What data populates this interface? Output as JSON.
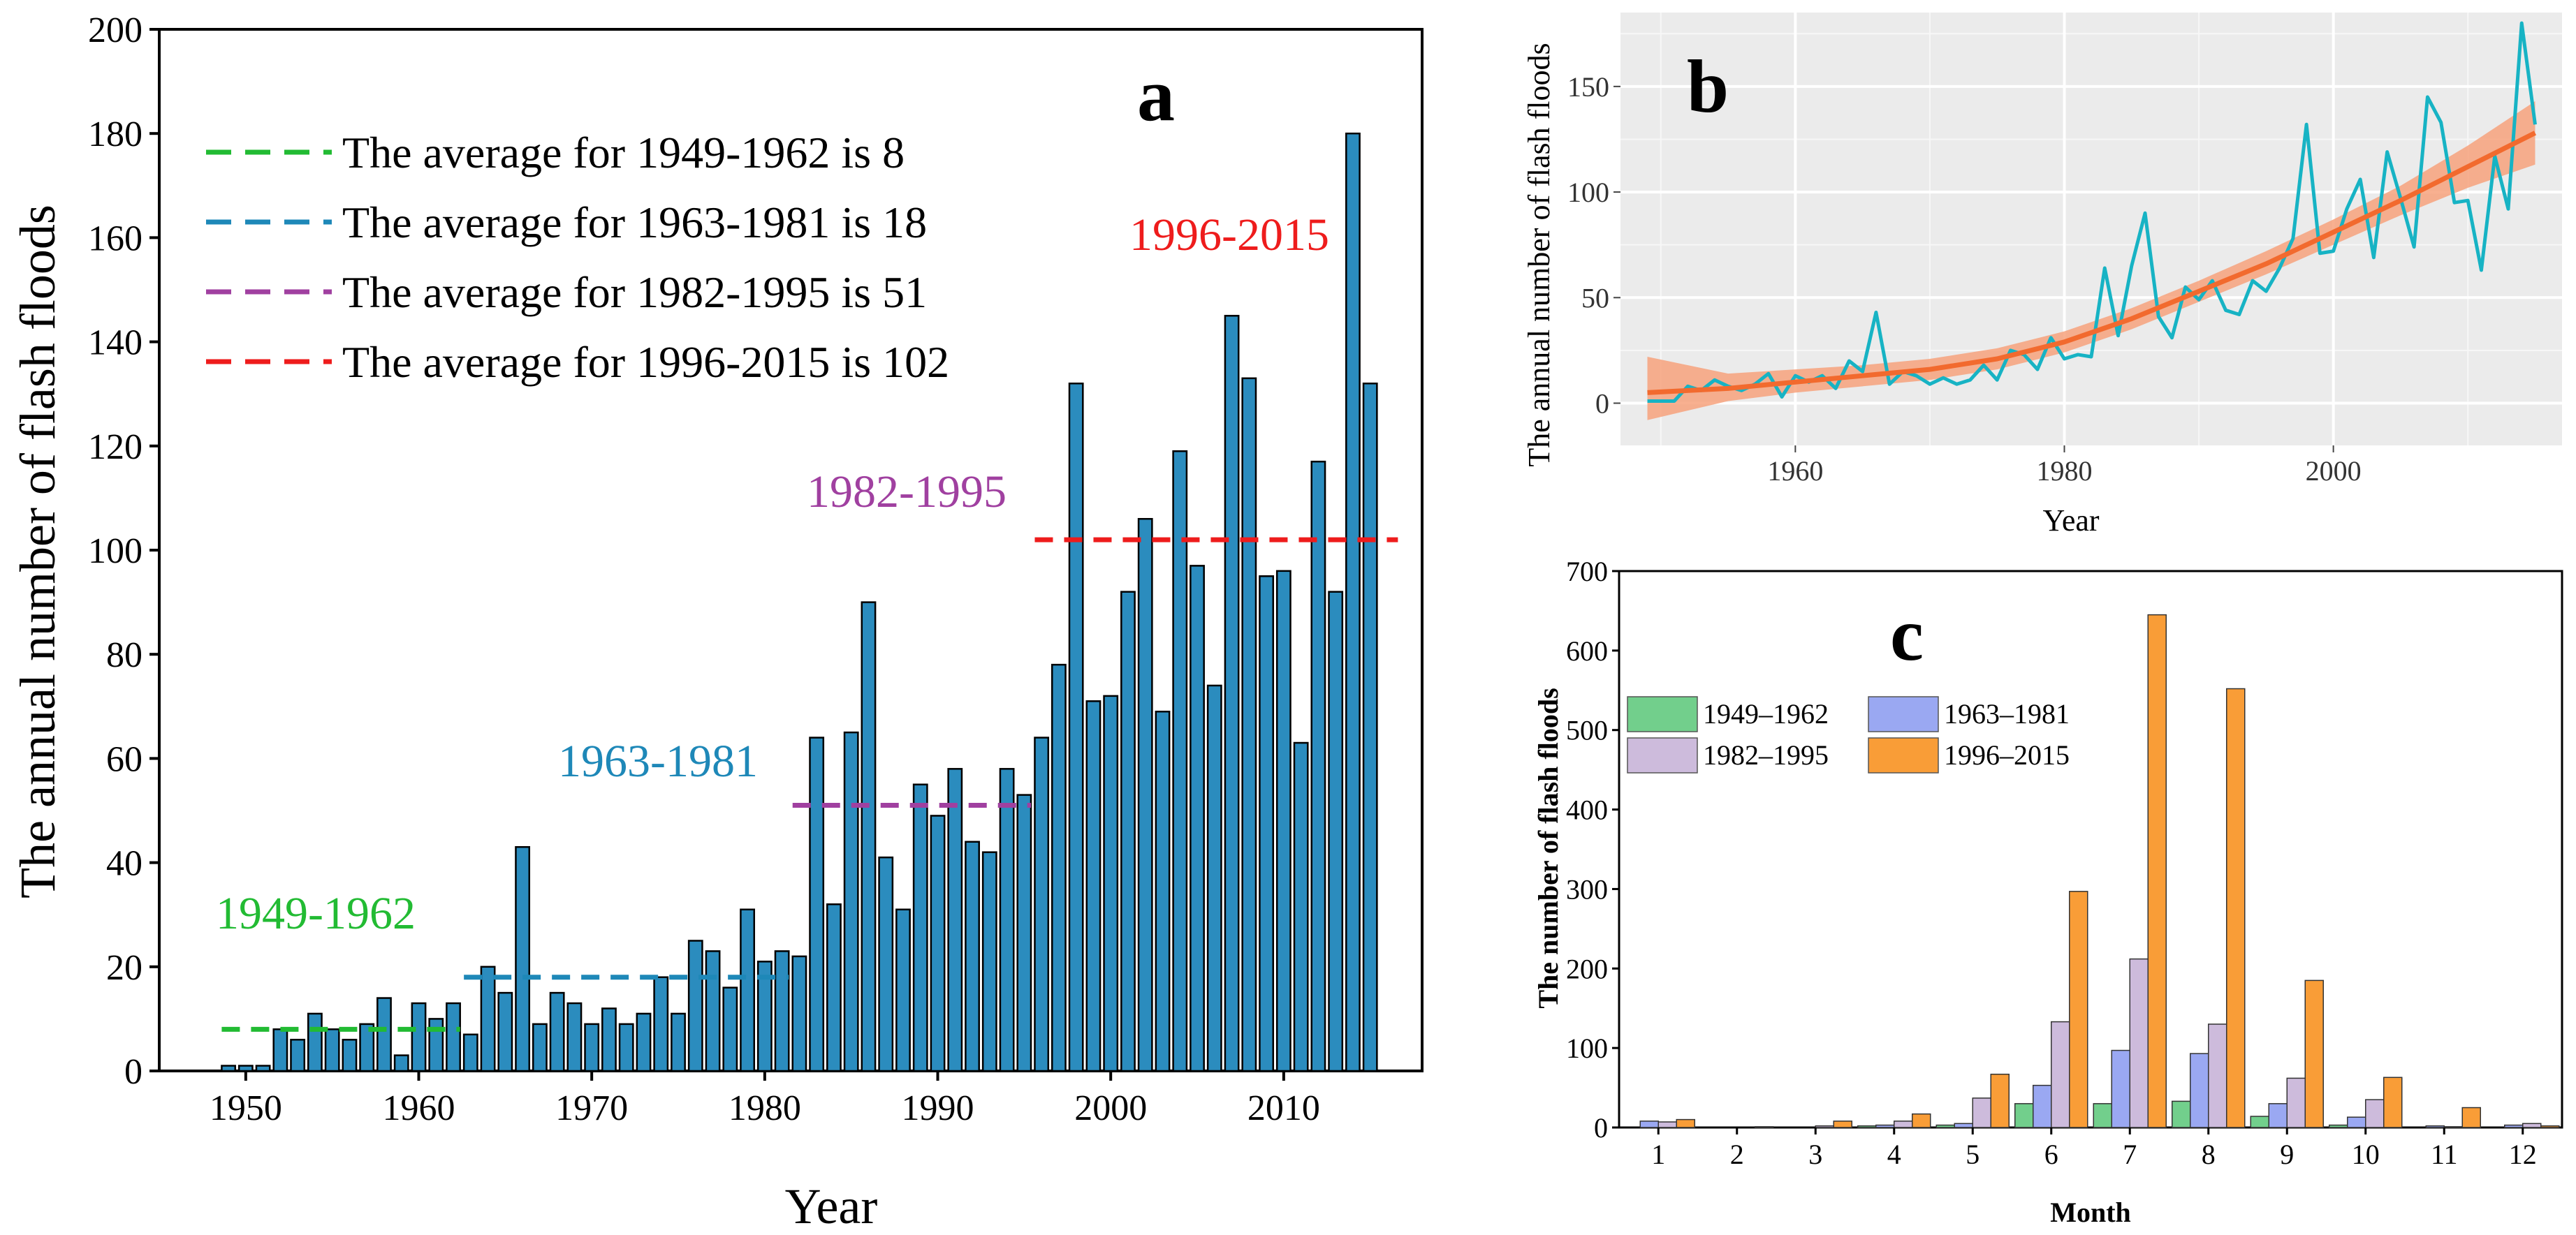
{
  "chart_data": [
    {
      "panel": "a",
      "type": "bar",
      "xlabel": "Year",
      "ylabel": "The annual number of flash floods",
      "xlim": [
        1945,
        2018
      ],
      "ylim": [
        0,
        200
      ],
      "xticks": [
        1950,
        1960,
        1970,
        1980,
        1990,
        2000,
        2010
      ],
      "yticks": [
        0,
        20,
        40,
        60,
        80,
        100,
        120,
        140,
        160,
        180,
        200
      ],
      "grid": false,
      "x": [
        1949,
        1950,
        1951,
        1952,
        1953,
        1954,
        1955,
        1956,
        1957,
        1958,
        1959,
        1960,
        1961,
        1962,
        1963,
        1964,
        1965,
        1966,
        1967,
        1968,
        1969,
        1970,
        1971,
        1972,
        1973,
        1974,
        1975,
        1976,
        1977,
        1978,
        1979,
        1980,
        1981,
        1982,
        1983,
        1984,
        1985,
        1986,
        1987,
        1988,
        1989,
        1990,
        1991,
        1992,
        1993,
        1994,
        1995,
        1996,
        1997,
        1998,
        1999,
        2000,
        2001,
        2002,
        2003,
        2004,
        2005,
        2006,
        2007,
        2008,
        2009,
        2010,
        2011,
        2012,
        2013,
        2014,
        2015
      ],
      "values": [
        1,
        1,
        1,
        8,
        6,
        11,
        8,
        6,
        9,
        14,
        3,
        13,
        10,
        13,
        7,
        20,
        15,
        43,
        9,
        15,
        13,
        9,
        12,
        9,
        11,
        18,
        11,
        25,
        23,
        16,
        31,
        21,
        23,
        22,
        64,
        32,
        65,
        90,
        41,
        31,
        55,
        49,
        58,
        44,
        42,
        58,
        53,
        64,
        78,
        132,
        71,
        72,
        92,
        106,
        69,
        119,
        97,
        74,
        145,
        133,
        95,
        96,
        63,
        117,
        92,
        180,
        132
      ],
      "bar_color": "#2b8cbe",
      "legend": [
        {
          "label": "The average for 1949-1962 is 8",
          "color": "#22bb33"
        },
        {
          "label": "The average for 1963-1981 is 18",
          "color": "#1e88b8"
        },
        {
          "label": "The average for 1982-1995 is 51",
          "color": "#a040a0"
        },
        {
          "label": "The average for 1996-2015 is 102",
          "color": "#ee1c1c"
        }
      ],
      "averages": [
        {
          "from": 1949,
          "to": 1962,
          "value": 8,
          "label": "1949-1962",
          "color": "#22bb33"
        },
        {
          "from": 1963,
          "to": 1981,
          "value": 18,
          "label": "1963-1981",
          "color": "#1e88b8"
        },
        {
          "from": 1982,
          "to": 1995,
          "value": 51,
          "label": "1982-1995",
          "color": "#a040a0"
        },
        {
          "from": 1996,
          "to": 2015,
          "value": 102,
          "label": "1996-2015",
          "color": "#ee1c1c"
        }
      ]
    },
    {
      "panel": "b",
      "type": "line",
      "xlabel": "Year",
      "ylabel": "The annual number of flash floods",
      "xlim": [
        1947,
        2017
      ],
      "ylim": [
        -20,
        185
      ],
      "xticks": [
        1960,
        1980,
        2000
      ],
      "yticks": [
        0,
        50,
        100,
        150
      ],
      "grid": true,
      "line_color": "#17b3c4",
      "fit_color": "#f26a2e",
      "band_color": "#f7a27c",
      "x": [
        1949,
        1950,
        1951,
        1952,
        1953,
        1954,
        1955,
        1956,
        1957,
        1958,
        1959,
        1960,
        1961,
        1962,
        1963,
        1964,
        1965,
        1966,
        1967,
        1968,
        1969,
        1970,
        1971,
        1972,
        1973,
        1974,
        1975,
        1976,
        1977,
        1978,
        1979,
        1980,
        1981,
        1982,
        1983,
        1984,
        1985,
        1986,
        1987,
        1988,
        1989,
        1990,
        1991,
        1992,
        1993,
        1994,
        1995,
        1996,
        1997,
        1998,
        1999,
        2000,
        2001,
        2002,
        2003,
        2004,
        2005,
        2006,
        2007,
        2008,
        2009,
        2010,
        2011,
        2012,
        2013,
        2014,
        2015
      ],
      "values": [
        1,
        1,
        1,
        8,
        6,
        11,
        8,
        6,
        9,
        14,
        3,
        13,
        10,
        13,
        7,
        20,
        15,
        43,
        9,
        15,
        13,
        9,
        12,
        9,
        11,
        18,
        11,
        25,
        23,
        16,
        31,
        21,
        23,
        22,
        64,
        32,
        65,
        90,
        41,
        31,
        55,
        49,
        58,
        44,
        42,
        58,
        53,
        64,
        78,
        132,
        71,
        72,
        92,
        106,
        69,
        119,
        97,
        74,
        145,
        133,
        95,
        96,
        63,
        117,
        92,
        180,
        132
      ],
      "fit": [
        {
          "x": 1949,
          "y": 5,
          "lo": -8,
          "hi": 22
        },
        {
          "x": 1955,
          "y": 7,
          "lo": 1,
          "hi": 14
        },
        {
          "x": 1960,
          "y": 10,
          "lo": 5,
          "hi": 16
        },
        {
          "x": 1965,
          "y": 13,
          "lo": 8,
          "hi": 18
        },
        {
          "x": 1970,
          "y": 16,
          "lo": 11,
          "hi": 21
        },
        {
          "x": 1975,
          "y": 21,
          "lo": 16,
          "hi": 26
        },
        {
          "x": 1980,
          "y": 29,
          "lo": 24,
          "hi": 34
        },
        {
          "x": 1985,
          "y": 40,
          "lo": 35,
          "hi": 45
        },
        {
          "x": 1990,
          "y": 53,
          "lo": 48,
          "hi": 58
        },
        {
          "x": 1995,
          "y": 66,
          "lo": 61,
          "hi": 72
        },
        {
          "x": 2000,
          "y": 81,
          "lo": 75,
          "hi": 87
        },
        {
          "x": 2005,
          "y": 96,
          "lo": 89,
          "hi": 103
        },
        {
          "x": 2010,
          "y": 112,
          "lo": 102,
          "hi": 122
        },
        {
          "x": 2015,
          "y": 128,
          "lo": 113,
          "hi": 143
        }
      ]
    },
    {
      "panel": "c",
      "type": "bar",
      "xlabel": "Month",
      "ylabel": "The number of flash floods",
      "ylim": [
        0,
        700
      ],
      "yticks": [
        0,
        100,
        200,
        300,
        400,
        500,
        600,
        700
      ],
      "grid": false,
      "categories": [
        "1",
        "2",
        "3",
        "4",
        "5",
        "6",
        "7",
        "8",
        "9",
        "10",
        "11",
        "12"
      ],
      "series": [
        {
          "name": "1949–1962",
          "color": "#72cf8c",
          "values": [
            0,
            0,
            0,
            2,
            3,
            30,
            30,
            33,
            14,
            3,
            0,
            0
          ]
        },
        {
          "name": "1963–1981",
          "color": "#9aa8f2",
          "values": [
            8,
            0,
            0,
            3,
            5,
            53,
            97,
            93,
            30,
            13,
            2,
            3
          ]
        },
        {
          "name": "1982–1995",
          "color": "#cdbbdc",
          "values": [
            7,
            0,
            2,
            8,
            37,
            133,
            212,
            130,
            62,
            35,
            1,
            5
          ]
        },
        {
          "name": "1996–2015",
          "color": "#f99d37",
          "values": [
            10,
            1,
            8,
            17,
            67,
            297,
            645,
            552,
            185,
            63,
            25,
            2
          ]
        }
      ]
    }
  ],
  "labels": {
    "panel_a": "a",
    "panel_b": "b",
    "panel_c": "c"
  }
}
